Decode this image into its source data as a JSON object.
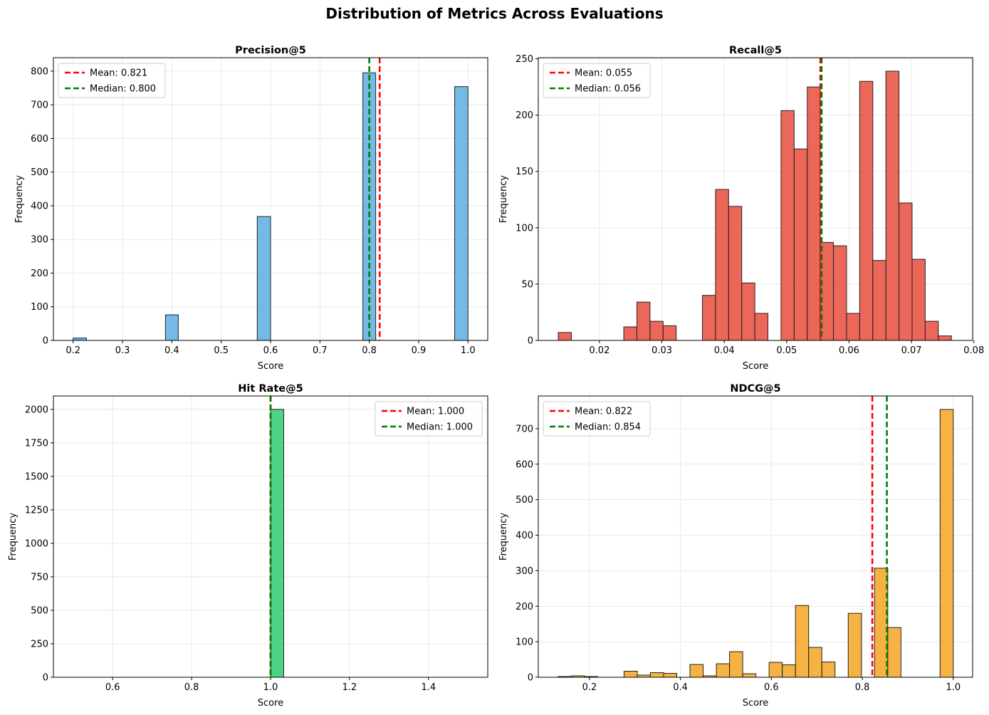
{
  "figure": {
    "title": "Distribution of Metrics Across Evaluations"
  },
  "chart_data": [
    {
      "type": "bar",
      "title": "Precision@5",
      "xlabel": "Score",
      "ylabel": "Frequency",
      "xlim": [
        0.16,
        1.04
      ],
      "ylim": [
        0,
        840
      ],
      "xticks": [
        0.2,
        0.3,
        0.4,
        0.5,
        0.6,
        0.7,
        0.8,
        0.9,
        1.0
      ],
      "xtick_labels": [
        "0.2",
        "0.3",
        "0.4",
        "0.5",
        "0.6",
        "0.7",
        "0.8",
        "0.9",
        "1.0"
      ],
      "yticks": [
        0,
        100,
        200,
        300,
        400,
        500,
        600,
        700,
        800
      ],
      "ytick_labels": [
        "0",
        "100",
        "200",
        "300",
        "400",
        "500",
        "600",
        "700",
        "800"
      ],
      "color": "#5DADE2",
      "bin_width": 0.0267,
      "bins": [
        {
          "x0": 0.2,
          "x1": 0.227,
          "count": 7
        },
        {
          "x0": 0.387,
          "x1": 0.413,
          "count": 76
        },
        {
          "x0": 0.573,
          "x1": 0.6,
          "count": 368
        },
        {
          "x0": 0.787,
          "x1": 0.813,
          "count": 795
        },
        {
          "x0": 0.973,
          "x1": 1.0,
          "count": 754
        }
      ],
      "mean": 0.821,
      "median": 0.8,
      "legend": {
        "position": "top-left",
        "mean_label": "Mean: 0.821",
        "median_label": "Median: 0.800"
      },
      "grid": true
    },
    {
      "type": "bar",
      "title": "Recall@5",
      "xlabel": "Score",
      "ylabel": "Frequency",
      "xlim": [
        0.0102,
        0.0798
      ],
      "ylim": [
        0,
        251
      ],
      "xticks": [
        0.02,
        0.03,
        0.04,
        0.05,
        0.06,
        0.07,
        0.08
      ],
      "xtick_labels": [
        "0.02",
        "0.03",
        "0.04",
        "0.05",
        "0.06",
        "0.07",
        "0.08"
      ],
      "yticks": [
        0,
        50,
        100,
        150,
        200,
        250
      ],
      "ytick_labels": [
        "0",
        "50",
        "100",
        "150",
        "200",
        "250"
      ],
      "color": "#E74C3C",
      "bin_width": 0.0021,
      "bins": [
        {
          "x0": 0.0134,
          "x1": 0.0155,
          "count": 7
        },
        {
          "x0": 0.0239,
          "x1": 0.026,
          "count": 12
        },
        {
          "x0": 0.026,
          "x1": 0.0281,
          "count": 34
        },
        {
          "x0": 0.0281,
          "x1": 0.0302,
          "count": 17
        },
        {
          "x0": 0.0302,
          "x1": 0.0323,
          "count": 13
        },
        {
          "x0": 0.0365,
          "x1": 0.0386,
          "count": 40
        },
        {
          "x0": 0.0386,
          "x1": 0.0407,
          "count": 134
        },
        {
          "x0": 0.0407,
          "x1": 0.0428,
          "count": 119
        },
        {
          "x0": 0.0428,
          "x1": 0.0449,
          "count": 51
        },
        {
          "x0": 0.0449,
          "x1": 0.047,
          "count": 24
        },
        {
          "x0": 0.0491,
          "x1": 0.0512,
          "count": 204
        },
        {
          "x0": 0.0512,
          "x1": 0.0533,
          "count": 170
        },
        {
          "x0": 0.0533,
          "x1": 0.0554,
          "count": 225
        },
        {
          "x0": 0.0554,
          "x1": 0.0575,
          "count": 87
        },
        {
          "x0": 0.0575,
          "x1": 0.0596,
          "count": 84
        },
        {
          "x0": 0.0596,
          "x1": 0.0617,
          "count": 24
        },
        {
          "x0": 0.0617,
          "x1": 0.0638,
          "count": 230
        },
        {
          "x0": 0.0638,
          "x1": 0.0659,
          "count": 71
        },
        {
          "x0": 0.0659,
          "x1": 0.068,
          "count": 239
        },
        {
          "x0": 0.068,
          "x1": 0.0701,
          "count": 122
        },
        {
          "x0": 0.0701,
          "x1": 0.0722,
          "count": 72
        },
        {
          "x0": 0.0722,
          "x1": 0.0743,
          "count": 17
        },
        {
          "x0": 0.0743,
          "x1": 0.0764,
          "count": 4
        }
      ],
      "mean": 0.055,
      "median": 0.056,
      "mean_line_x": 0.0554,
      "median_line_x": 0.0556,
      "legend": {
        "position": "top-left",
        "mean_label": "Mean: 0.055",
        "median_label": "Median: 0.056"
      },
      "grid": true
    },
    {
      "type": "bar",
      "title": "Hit Rate@5",
      "xlabel": "Score",
      "ylabel": "Frequency",
      "xlim": [
        0.45,
        1.55
      ],
      "ylim": [
        0,
        2100
      ],
      "xticks": [
        0.6,
        0.8,
        1.0,
        1.2,
        1.4
      ],
      "xtick_labels": [
        "0.6",
        "0.8",
        "1.0",
        "1.2",
        "1.4"
      ],
      "yticks": [
        0,
        250,
        500,
        750,
        1000,
        1250,
        1500,
        1750,
        2000
      ],
      "ytick_labels": [
        "0",
        "250",
        "500",
        "750",
        "1000",
        "1250",
        "1500",
        "1750",
        "2000"
      ],
      "color": "#2ECC71",
      "bin_width": 0.0333,
      "bins": [
        {
          "x0": 1.0,
          "x1": 1.0333,
          "count": 2000
        }
      ],
      "mean": 1.0,
      "median": 1.0,
      "legend": {
        "position": "top-right",
        "mean_label": "Mean: 1.000",
        "median_label": "Median: 1.000"
      },
      "grid": true
    },
    {
      "type": "bar",
      "title": "NDCG@5",
      "xlabel": "Score",
      "ylabel": "Frequency",
      "xlim": [
        0.0874,
        1.0426
      ],
      "ylim": [
        0,
        792
      ],
      "xticks": [
        0.2,
        0.4,
        0.6,
        0.8,
        1.0
      ],
      "xtick_labels": [
        "0.2",
        "0.4",
        "0.6",
        "0.8",
        "1.0"
      ],
      "yticks": [
        0,
        100,
        200,
        300,
        400,
        500,
        600,
        700
      ],
      "ytick_labels": [
        "0",
        "100",
        "200",
        "300",
        "400",
        "500",
        "600",
        "700"
      ],
      "color": "#F5A623",
      "bin_width": 0.0289,
      "bins": [
        {
          "x0": 0.131,
          "x1": 0.16,
          "count": 2
        },
        {
          "x0": 0.16,
          "x1": 0.189,
          "count": 4
        },
        {
          "x0": 0.189,
          "x1": 0.218,
          "count": 2
        },
        {
          "x0": 0.276,
          "x1": 0.305,
          "count": 17
        },
        {
          "x0": 0.305,
          "x1": 0.334,
          "count": 6
        },
        {
          "x0": 0.334,
          "x1": 0.363,
          "count": 13
        },
        {
          "x0": 0.363,
          "x1": 0.392,
          "count": 11
        },
        {
          "x0": 0.421,
          "x1": 0.45,
          "count": 36
        },
        {
          "x0": 0.45,
          "x1": 0.479,
          "count": 4
        },
        {
          "x0": 0.479,
          "x1": 0.508,
          "count": 38
        },
        {
          "x0": 0.508,
          "x1": 0.537,
          "count": 72
        },
        {
          "x0": 0.537,
          "x1": 0.566,
          "count": 10
        },
        {
          "x0": 0.595,
          "x1": 0.624,
          "count": 42
        },
        {
          "x0": 0.624,
          "x1": 0.653,
          "count": 35
        },
        {
          "x0": 0.653,
          "x1": 0.682,
          "count": 202
        },
        {
          "x0": 0.682,
          "x1": 0.711,
          "count": 84
        },
        {
          "x0": 0.711,
          "x1": 0.74,
          "count": 43
        },
        {
          "x0": 0.769,
          "x1": 0.798,
          "count": 180
        },
        {
          "x0": 0.827,
          "x1": 0.856,
          "count": 307
        },
        {
          "x0": 0.856,
          "x1": 0.885,
          "count": 140
        },
        {
          "x0": 0.971,
          "x1": 1.0,
          "count": 754
        }
      ],
      "mean": 0.822,
      "median": 0.854,
      "legend": {
        "position": "top-left",
        "mean_label": "Mean: 0.822",
        "median_label": "Median: 0.854"
      },
      "grid": true
    }
  ]
}
